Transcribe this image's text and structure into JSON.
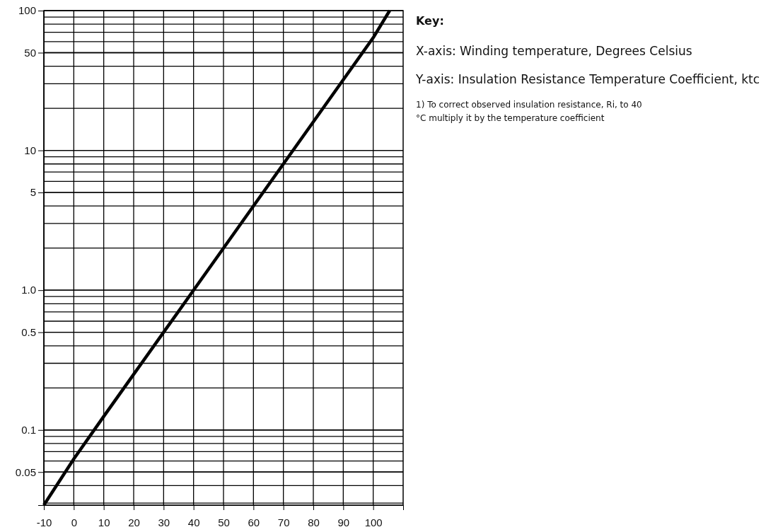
{
  "chart_data": {
    "type": "line",
    "log": "y",
    "grid": true,
    "marker": "none",
    "line_style": "solid",
    "xlim": [
      -10,
      110
    ],
    "xticks": [
      -10,
      0,
      10,
      20,
      30,
      40,
      50,
      60,
      70,
      80,
      90,
      100
    ],
    "ylim": [
      0.029,
      100
    ],
    "yticks": [
      0.05,
      0.1,
      0.5,
      {
        "value": 1,
        "label": "1.0"
      },
      5,
      10,
      50,
      100
    ],
    "x": [
      -10,
      0,
      10,
      20,
      30,
      40,
      50,
      60,
      70,
      80,
      90,
      100,
      105.5
    ],
    "series": [
      {
        "color": "#000000",
        "values": [
          0.029,
          0.062,
          0.125,
          0.25,
          0.5,
          1,
          2,
          4,
          8,
          16,
          32,
          64,
          100
        ]
      }
    ],
    "annotations": [
      "Key:",
      "X-axis: Winding temperature, Degrees Celsius",
      "Y-axis: Insulation Resistance Temperature Coefficient, ktc",
      "1) To correct observed insulation resistance, Ri, to 40 °C multiply it by the temperature coefficient"
    ]
  }
}
